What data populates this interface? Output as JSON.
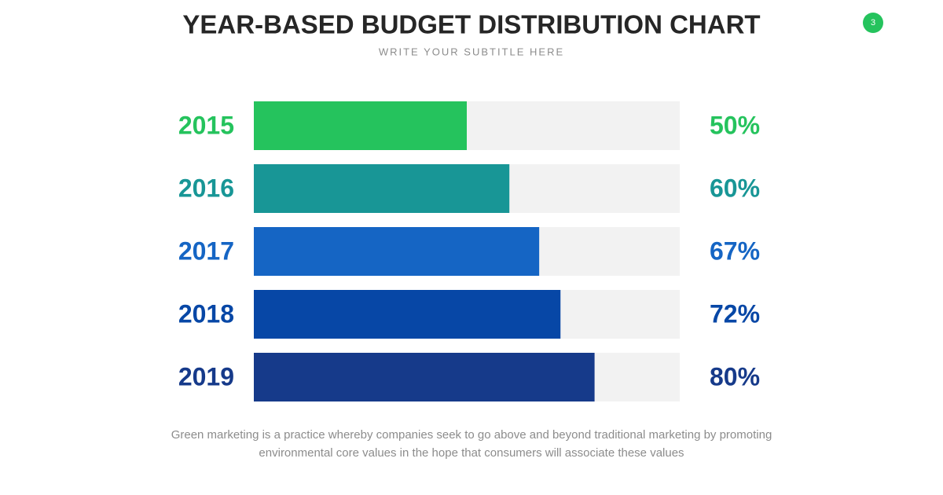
{
  "page_number": "3",
  "chart_data": {
    "type": "bar",
    "orientation": "horizontal",
    "title": "YEAR-BASED BUDGET DISTRIBUTION CHART",
    "subtitle": "WRITE YOUR SUBTITLE HERE",
    "categories": [
      "2015",
      "2016",
      "2017",
      "2018",
      "2019"
    ],
    "values": [
      50,
      60,
      67,
      72,
      80
    ],
    "value_labels": [
      "50%",
      "60%",
      "67%",
      "72%",
      "80%"
    ],
    "colors": [
      "#25c35d",
      "#189696",
      "#1565c4",
      "#0747a6",
      "#163a8a"
    ],
    "track_color": "#f2f2f2",
    "xlim": [
      0,
      100
    ],
    "description": [
      "Green marketing is a practice whereby companies seek to go above and beyond traditional marketing by promoting",
      "environmental core values in the hope that consumers will associate these values"
    ]
  }
}
